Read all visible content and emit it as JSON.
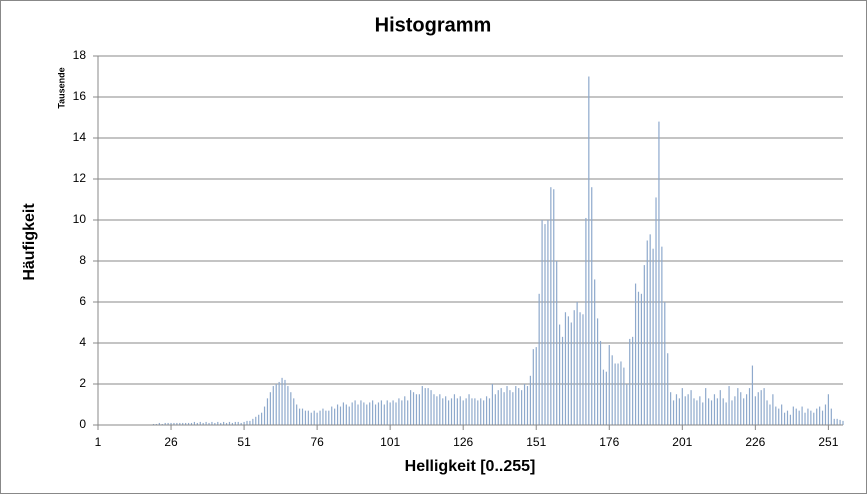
{
  "chart_data": {
    "type": "histogram",
    "title": "Histogramm",
    "xlabel": "Helligkeit [0..255]",
    "ylabel": "Häufigkeit",
    "yunit": "Tausende",
    "color": "#8ea9cc",
    "grid": true,
    "x": [
      1,
      2,
      3,
      4,
      5,
      6,
      7,
      8,
      9,
      10,
      11,
      12,
      13,
      14,
      15,
      16,
      17,
      18,
      19,
      20,
      21,
      22,
      23,
      24,
      25,
      26,
      27,
      28,
      29,
      30,
      31,
      32,
      33,
      34,
      35,
      36,
      37,
      38,
      39,
      40,
      41,
      42,
      43,
      44,
      45,
      46,
      47,
      48,
      49,
      50,
      51,
      52,
      53,
      54,
      55,
      56,
      57,
      58,
      59,
      60,
      61,
      62,
      63,
      64,
      65,
      66,
      67,
      68,
      69,
      70,
      71,
      72,
      73,
      74,
      75,
      76,
      77,
      78,
      79,
      80,
      81,
      82,
      83,
      84,
      85,
      86,
      87,
      88,
      89,
      90,
      91,
      92,
      93,
      94,
      95,
      96,
      97,
      98,
      99,
      100,
      101,
      102,
      103,
      104,
      105,
      106,
      107,
      108,
      109,
      110,
      111,
      112,
      113,
      114,
      115,
      116,
      117,
      118,
      119,
      120,
      121,
      122,
      123,
      124,
      125,
      126,
      127,
      128,
      129,
      130,
      131,
      132,
      133,
      134,
      135,
      136,
      137,
      138,
      139,
      140,
      141,
      142,
      143,
      144,
      145,
      146,
      147,
      148,
      149,
      150,
      151,
      152,
      153,
      154,
      155,
      156,
      157,
      158,
      159,
      160,
      161,
      162,
      163,
      164,
      165,
      166,
      167,
      168,
      169,
      170,
      171,
      172,
      173,
      174,
      175,
      176,
      177,
      178,
      179,
      180,
      181,
      182,
      183,
      184,
      185,
      186,
      187,
      188,
      189,
      190,
      191,
      192,
      193,
      194,
      195,
      196,
      197,
      198,
      199,
      200,
      201,
      202,
      203,
      204,
      205,
      206,
      207,
      208,
      209,
      210,
      211,
      212,
      213,
      214,
      215,
      216,
      217,
      218,
      219,
      220,
      221,
      222,
      223,
      224,
      225,
      226,
      227,
      228,
      229,
      230,
      231,
      232,
      233,
      234,
      235,
      236,
      237,
      238,
      239,
      240,
      241,
      242,
      243,
      244,
      245,
      246,
      247,
      248,
      249,
      250,
      251,
      252,
      253,
      254,
      255,
      256
    ],
    "values": [
      0,
      0,
      0,
      0,
      0,
      0,
      0,
      0,
      0,
      0,
      0,
      0,
      0,
      0,
      0,
      0,
      0,
      0,
      0,
      0.05,
      0.05,
      0.1,
      0.05,
      0.1,
      0.1,
      0.1,
      0.1,
      0.1,
      0.1,
      0.1,
      0.1,
      0.1,
      0.1,
      0.15,
      0.1,
      0.15,
      0.1,
      0.15,
      0.1,
      0.15,
      0.1,
      0.15,
      0.1,
      0.15,
      0.1,
      0.15,
      0.1,
      0.15,
      0.15,
      0.1,
      0.15,
      0.2,
      0.2,
      0.3,
      0.4,
      0.5,
      0.6,
      0.9,
      1.3,
      1.6,
      1.9,
      2.0,
      2.1,
      2.3,
      2.2,
      1.9,
      1.6,
      1.3,
      1.0,
      0.8,
      0.8,
      0.7,
      0.7,
      0.6,
      0.7,
      0.6,
      0.7,
      0.8,
      0.7,
      0.7,
      0.9,
      0.8,
      1.0,
      0.9,
      1.1,
      1.0,
      0.9,
      1.1,
      1.2,
      1.0,
      1.2,
      1.1,
      1.0,
      1.1,
      1.2,
      1.0,
      1.1,
      1.2,
      1.0,
      1.2,
      1.1,
      1.2,
      1.1,
      1.3,
      1.2,
      1.4,
      1.2,
      1.7,
      1.6,
      1.5,
      1.5,
      1.9,
      1.8,
      1.8,
      1.7,
      1.5,
      1.4,
      1.5,
      1.3,
      1.4,
      1.2,
      1.3,
      1.5,
      1.3,
      1.4,
      1.2,
      1.3,
      1.5,
      1.3,
      1.3,
      1.2,
      1.3,
      1.2,
      1.4,
      1.3,
      2.0,
      1.5,
      1.7,
      1.8,
      1.6,
      1.9,
      1.7,
      1.6,
      1.9,
      1.8,
      1.7,
      2.0,
      1.9,
      2.4,
      3.7,
      3.8,
      6.4,
      10.0,
      9.8,
      10.0,
      11.6,
      11.5,
      8.0,
      4.9,
      4.3,
      5.5,
      5.3,
      5.0,
      5.6,
      6.0,
      5.5,
      5.4,
      10.1,
      17.0,
      11.6,
      7.1,
      5.2,
      4.1,
      2.7,
      2.6,
      3.9,
      3.4,
      3.0,
      3.0,
      3.1,
      2.8,
      2.0,
      4.2,
      4.3,
      6.9,
      6.5,
      6.4,
      7.8,
      9.0,
      9.3,
      8.6,
      11.1,
      14.8,
      8.7,
      6.0,
      3.5,
      1.6,
      1.2,
      1.5,
      1.3,
      1.8,
      1.4,
      1.5,
      1.7,
      1.3,
      1.2,
      1.4,
      1.1,
      1.8,
      1.3,
      1.2,
      1.5,
      1.3,
      1.7,
      1.3,
      1.1,
      1.9,
      1.2,
      1.4,
      1.8,
      1.6,
      1.3,
      1.5,
      1.8,
      2.9,
      1.4,
      1.6,
      1.7,
      1.8,
      1.2,
      1.0,
      1.5,
      0.9,
      0.8,
      1.0,
      0.6,
      0.7,
      0.5,
      0.9,
      0.8,
      0.7,
      0.9,
      0.6,
      0.8,
      0.7,
      0.6,
      0.8,
      0.9,
      0.7,
      1.0,
      1.5,
      0.8,
      0.3,
      0.3,
      0.25,
      0.2
    ],
    "xlim": [
      1,
      256
    ],
    "xticks": [
      1,
      26,
      51,
      76,
      101,
      126,
      151,
      176,
      201,
      226,
      251
    ],
    "ylim": [
      0,
      18
    ],
    "yticks": [
      0,
      2,
      4,
      6,
      8,
      10,
      12,
      14,
      16,
      18
    ]
  }
}
